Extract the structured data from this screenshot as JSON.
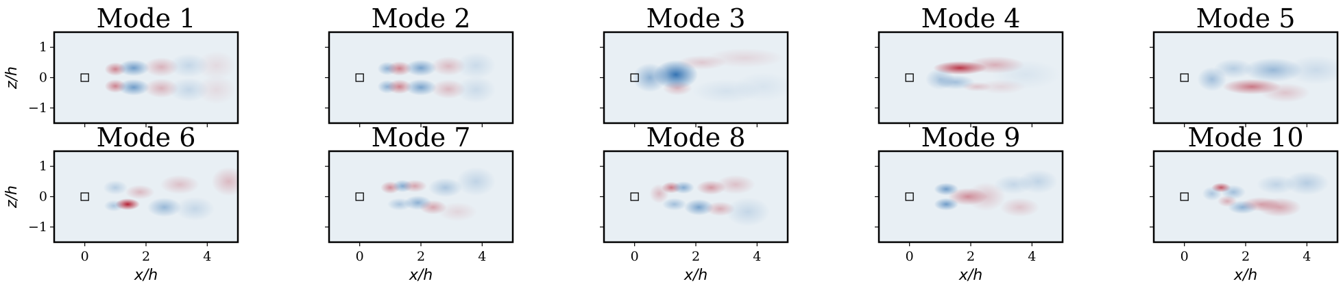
{
  "chart_data": {
    "type": "heatmap",
    "layout": {
      "rows": 2,
      "cols": 5
    },
    "xlabel": "x/h",
    "ylabel": "z/h",
    "xlim": [
      -1,
      5
    ],
    "ylim": [
      -1.5,
      1.5
    ],
    "xticks": [
      0,
      2,
      4
    ],
    "yticks": [
      -1,
      0,
      1
    ],
    "colormap": "RdBu_r",
    "colors": {
      "positive": "#b2182b",
      "negative": "#2166ac",
      "zero": "#e8eff4"
    },
    "obstacle_marker": {
      "x": 0,
      "z": 0,
      "shape": "square"
    },
    "panels": [
      {
        "title": "Mode 1",
        "blobs": [
          {
            "x": 1.0,
            "z": 0.28,
            "a": 0.5,
            "sx": 0.22,
            "sz": 0.14
          },
          {
            "x": 1.0,
            "z": -0.28,
            "a": 0.5,
            "sx": 0.22,
            "sz": 0.14
          },
          {
            "x": 1.6,
            "z": 0.32,
            "a": -0.6,
            "sx": 0.32,
            "sz": 0.17
          },
          {
            "x": 1.6,
            "z": -0.32,
            "a": -0.6,
            "sx": 0.32,
            "sz": 0.17
          },
          {
            "x": 2.5,
            "z": 0.35,
            "a": 0.28,
            "sx": 0.35,
            "sz": 0.2
          },
          {
            "x": 2.5,
            "z": -0.35,
            "a": 0.28,
            "sx": 0.35,
            "sz": 0.2
          },
          {
            "x": 3.4,
            "z": 0.4,
            "a": -0.18,
            "sx": 0.4,
            "sz": 0.25
          },
          {
            "x": 3.4,
            "z": -0.4,
            "a": -0.18,
            "sx": 0.4,
            "sz": 0.25
          },
          {
            "x": 4.3,
            "z": 0.4,
            "a": 0.1,
            "sx": 0.4,
            "sz": 0.3
          },
          {
            "x": 4.3,
            "z": -0.4,
            "a": 0.1,
            "sx": 0.4,
            "sz": 0.3
          }
        ]
      },
      {
        "title": "Mode 2",
        "blobs": [
          {
            "x": 0.9,
            "z": 0.3,
            "a": -0.45,
            "sx": 0.2,
            "sz": 0.14
          },
          {
            "x": 0.9,
            "z": -0.3,
            "a": -0.45,
            "sx": 0.2,
            "sz": 0.14
          },
          {
            "x": 1.3,
            "z": 0.3,
            "a": 0.5,
            "sx": 0.25,
            "sz": 0.15
          },
          {
            "x": 1.3,
            "z": -0.3,
            "a": 0.5,
            "sx": 0.25,
            "sz": 0.15
          },
          {
            "x": 2.0,
            "z": 0.32,
            "a": -0.55,
            "sx": 0.32,
            "sz": 0.17
          },
          {
            "x": 2.0,
            "z": -0.32,
            "a": -0.55,
            "sx": 0.32,
            "sz": 0.17
          },
          {
            "x": 2.9,
            "z": 0.38,
            "a": 0.25,
            "sx": 0.35,
            "sz": 0.2
          },
          {
            "x": 2.9,
            "z": -0.38,
            "a": 0.25,
            "sx": 0.35,
            "sz": 0.2
          },
          {
            "x": 3.8,
            "z": 0.4,
            "a": -0.15,
            "sx": 0.4,
            "sz": 0.28
          },
          {
            "x": 3.8,
            "z": -0.4,
            "a": -0.15,
            "sx": 0.4,
            "sz": 0.28
          }
        ]
      },
      {
        "title": "Mode 3",
        "blobs": [
          {
            "x": 0.5,
            "z": 0.0,
            "a": -0.45,
            "sx": 0.35,
            "sz": 0.3
          },
          {
            "x": 1.35,
            "z": 0.1,
            "a": -0.9,
            "sx": 0.45,
            "sz": 0.3
          },
          {
            "x": 1.4,
            "z": -0.35,
            "a": 0.25,
            "sx": 0.3,
            "sz": 0.15
          },
          {
            "x": 2.2,
            "z": 0.5,
            "a": 0.18,
            "sx": 0.5,
            "sz": 0.15
          },
          {
            "x": 3.6,
            "z": 0.65,
            "a": 0.12,
            "sx": 0.8,
            "sz": 0.2
          },
          {
            "x": 3.0,
            "z": -0.45,
            "a": -0.1,
            "sx": 0.7,
            "sz": 0.25
          },
          {
            "x": 4.2,
            "z": -0.3,
            "a": -0.08,
            "sx": 0.6,
            "sz": 0.3
          }
        ]
      },
      {
        "title": "Mode 4",
        "blobs": [
          {
            "x": 1.65,
            "z": 0.32,
            "a": 0.85,
            "sx": 0.55,
            "sz": 0.14
          },
          {
            "x": 2.8,
            "z": 0.42,
            "a": 0.3,
            "sx": 0.6,
            "sz": 0.18
          },
          {
            "x": 1.0,
            "z": -0.05,
            "a": -0.3,
            "sx": 0.3,
            "sz": 0.22
          },
          {
            "x": 1.5,
            "z": -0.15,
            "a": -0.35,
            "sx": 0.4,
            "sz": 0.15
          },
          {
            "x": 2.2,
            "z": -0.3,
            "a": 0.2,
            "sx": 0.3,
            "sz": 0.1
          },
          {
            "x": 3.0,
            "z": -0.3,
            "a": 0.12,
            "sx": 0.5,
            "sz": 0.15
          },
          {
            "x": 3.8,
            "z": 0.1,
            "a": -0.08,
            "sx": 0.7,
            "sz": 0.3
          }
        ]
      },
      {
        "title": "Mode 5",
        "blobs": [
          {
            "x": 0.9,
            "z": -0.05,
            "a": -0.35,
            "sx": 0.3,
            "sz": 0.25
          },
          {
            "x": 2.2,
            "z": -0.3,
            "a": 0.55,
            "sx": 0.6,
            "sz": 0.16
          },
          {
            "x": 1.6,
            "z": 0.3,
            "a": -0.25,
            "sx": 0.4,
            "sz": 0.2
          },
          {
            "x": 2.9,
            "z": 0.25,
            "a": -0.4,
            "sx": 0.6,
            "sz": 0.25
          },
          {
            "x": 3.3,
            "z": -0.5,
            "a": 0.2,
            "sx": 0.5,
            "sz": 0.2
          },
          {
            "x": 4.3,
            "z": 0.25,
            "a": -0.15,
            "sx": 0.6,
            "sz": 0.3
          }
        ]
      },
      {
        "title": "Mode 6",
        "blobs": [
          {
            "x": 1.4,
            "z": -0.25,
            "a": 0.95,
            "sx": 0.25,
            "sz": 0.12
          },
          {
            "x": 0.95,
            "z": -0.3,
            "a": -0.3,
            "sx": 0.2,
            "sz": 0.12
          },
          {
            "x": 1.0,
            "z": 0.3,
            "a": -0.25,
            "sx": 0.25,
            "sz": 0.15
          },
          {
            "x": 1.8,
            "z": 0.15,
            "a": 0.25,
            "sx": 0.3,
            "sz": 0.15
          },
          {
            "x": 2.6,
            "z": -0.35,
            "a": -0.4,
            "sx": 0.35,
            "sz": 0.2
          },
          {
            "x": 3.1,
            "z": 0.4,
            "a": 0.22,
            "sx": 0.4,
            "sz": 0.2
          },
          {
            "x": 3.6,
            "z": -0.4,
            "a": -0.18,
            "sx": 0.4,
            "sz": 0.25
          },
          {
            "x": 4.7,
            "z": 0.5,
            "a": 0.25,
            "sx": 0.35,
            "sz": 0.3
          }
        ]
      },
      {
        "title": "Mode 7",
        "blobs": [
          {
            "x": 1.0,
            "z": 0.3,
            "a": 0.45,
            "sx": 0.2,
            "sz": 0.13
          },
          {
            "x": 1.4,
            "z": 0.35,
            "a": -0.5,
            "sx": 0.2,
            "sz": 0.13
          },
          {
            "x": 1.8,
            "z": 0.35,
            "a": 0.35,
            "sx": 0.25,
            "sz": 0.13
          },
          {
            "x": 1.3,
            "z": -0.25,
            "a": -0.3,
            "sx": 0.25,
            "sz": 0.13
          },
          {
            "x": 1.9,
            "z": -0.2,
            "a": -0.45,
            "sx": 0.28,
            "sz": 0.15
          },
          {
            "x": 2.4,
            "z": -0.35,
            "a": 0.35,
            "sx": 0.28,
            "sz": 0.15
          },
          {
            "x": 2.8,
            "z": 0.3,
            "a": -0.3,
            "sx": 0.35,
            "sz": 0.2
          },
          {
            "x": 3.8,
            "z": 0.5,
            "a": -0.2,
            "sx": 0.4,
            "sz": 0.3
          },
          {
            "x": 3.2,
            "z": -0.5,
            "a": 0.12,
            "sx": 0.4,
            "sz": 0.2
          }
        ]
      },
      {
        "title": "Mode 8",
        "blobs": [
          {
            "x": 0.8,
            "z": 0.1,
            "a": 0.25,
            "sx": 0.2,
            "sz": 0.2
          },
          {
            "x": 1.2,
            "z": 0.3,
            "a": 0.55,
            "sx": 0.2,
            "sz": 0.12
          },
          {
            "x": 1.6,
            "z": 0.3,
            "a": -0.5,
            "sx": 0.22,
            "sz": 0.13
          },
          {
            "x": 1.3,
            "z": -0.25,
            "a": -0.35,
            "sx": 0.25,
            "sz": 0.13
          },
          {
            "x": 2.1,
            "z": -0.35,
            "a": -0.55,
            "sx": 0.3,
            "sz": 0.17
          },
          {
            "x": 2.5,
            "z": 0.3,
            "a": 0.4,
            "sx": 0.3,
            "sz": 0.15
          },
          {
            "x": 2.8,
            "z": -0.4,
            "a": 0.3,
            "sx": 0.3,
            "sz": 0.15
          },
          {
            "x": 3.3,
            "z": 0.4,
            "a": 0.22,
            "sx": 0.4,
            "sz": 0.2
          },
          {
            "x": 3.7,
            "z": -0.5,
            "a": -0.18,
            "sx": 0.45,
            "sz": 0.3
          }
        ]
      },
      {
        "title": "Mode 9",
        "blobs": [
          {
            "x": 1.2,
            "z": 0.25,
            "a": -0.6,
            "sx": 0.25,
            "sz": 0.13
          },
          {
            "x": 1.2,
            "z": -0.25,
            "a": -0.6,
            "sx": 0.25,
            "sz": 0.13
          },
          {
            "x": 1.9,
            "z": 0.0,
            "a": 0.45,
            "sx": 0.4,
            "sz": 0.18
          },
          {
            "x": 2.5,
            "z": 0.0,
            "a": 0.2,
            "sx": 0.4,
            "sz": 0.3
          },
          {
            "x": 3.4,
            "z": 0.4,
            "a": -0.18,
            "sx": 0.4,
            "sz": 0.2
          },
          {
            "x": 3.6,
            "z": -0.35,
            "a": 0.2,
            "sx": 0.4,
            "sz": 0.2
          },
          {
            "x": 4.2,
            "z": 0.5,
            "a": -0.2,
            "sx": 0.4,
            "sz": 0.25
          }
        ]
      },
      {
        "title": "Mode 10",
        "blobs": [
          {
            "x": 1.2,
            "z": 0.3,
            "a": 0.7,
            "sx": 0.2,
            "sz": 0.1
          },
          {
            "x": 0.9,
            "z": 0.1,
            "a": -0.3,
            "sx": 0.2,
            "sz": 0.15
          },
          {
            "x": 1.6,
            "z": 0.15,
            "a": -0.35,
            "sx": 0.25,
            "sz": 0.15
          },
          {
            "x": 1.4,
            "z": -0.15,
            "a": 0.3,
            "sx": 0.2,
            "sz": 0.12
          },
          {
            "x": 1.9,
            "z": -0.35,
            "a": -0.45,
            "sx": 0.3,
            "sz": 0.14
          },
          {
            "x": 2.5,
            "z": -0.25,
            "a": 0.35,
            "sx": 0.4,
            "sz": 0.15
          },
          {
            "x": 3.1,
            "z": -0.35,
            "a": 0.35,
            "sx": 0.45,
            "sz": 0.2
          },
          {
            "x": 3.0,
            "z": 0.4,
            "a": -0.2,
            "sx": 0.4,
            "sz": 0.2
          },
          {
            "x": 4.0,
            "z": 0.45,
            "a": -0.25,
            "sx": 0.45,
            "sz": 0.25
          }
        ]
      }
    ]
  }
}
